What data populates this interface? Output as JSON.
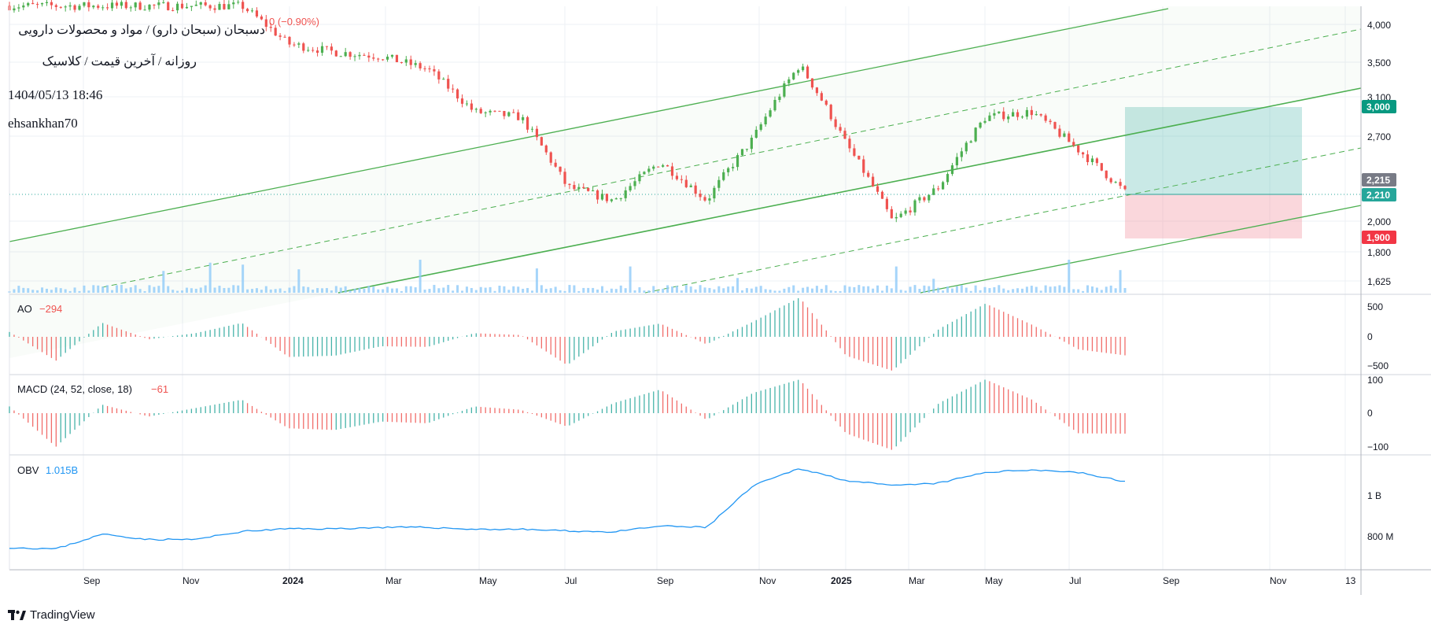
{
  "header": {
    "title": "دسبحان (سبحان دارو) / مواد و محصولات دارویی",
    "subtitle": "روزانه / آخرین قیمت / کلاسیک",
    "datetime": "1404/05/13 18:46",
    "author": "ehsankhan70",
    "change_text": "0 (−0.90%)"
  },
  "branding": {
    "logo_text": "TradingView"
  },
  "colors": {
    "up": "#26a69a",
    "up_candle": "#4caf50",
    "down": "#ef5350",
    "channel": "#4caf50",
    "volume": "#90caf9",
    "obv": "#2196f3",
    "target_zone": "#26a69a",
    "stop_zone": "#f28b9a",
    "grid": "#eef0f4"
  },
  "time_axis": {
    "labels": [
      "Sep",
      "Nov",
      "2024",
      "Mar",
      "May",
      "Jul",
      "Sep",
      "Nov",
      "2025",
      "Mar",
      "May",
      "Jul",
      "Sep",
      "Nov",
      "13"
    ],
    "bold": [
      "2024",
      "2025"
    ]
  },
  "price_axis": {
    "labels": [
      "4,000",
      "3,500",
      "3,100",
      "2,700",
      "2,000",
      "1,800",
      "1,625"
    ],
    "scale": "log",
    "badges": {
      "target": "3,000",
      "current_gray": "2,215",
      "current": "2,210",
      "stop": "1,900"
    }
  },
  "ao_pane": {
    "label": "AO",
    "value": "−294",
    "axis_labels": [
      "500",
      "0",
      "−500"
    ]
  },
  "macd_pane": {
    "label": "MACD (24, 52, close, 18)",
    "value": "−61",
    "axis_labels": [
      "100",
      "0",
      "−100"
    ]
  },
  "obv_pane": {
    "label": "OBV",
    "value": "1.015B",
    "axis_labels": [
      "1 B",
      "800 M"
    ]
  },
  "chart_data": [
    {
      "type": "line",
      "name_text": "price",
      "x": [
        "2023-08",
        "2023-09",
        "2023-10",
        "2023-11",
        "2023-12",
        "2024-01",
        "2024-02",
        "2024-03",
        "2024-04",
        "2024-05",
        "2024-06",
        "2024-07",
        "2024-08",
        "2024-09",
        "2024-10",
        "2024-11",
        "2024-12",
        "2025-01",
        "2025-02",
        "2025-03",
        "2025-04",
        "2025-05",
        "2025-06",
        "2025-07",
        "2025-08"
      ],
      "values": [
        4150,
        4150,
        4150,
        4150,
        4150,
        4150,
        3650,
        3550,
        3500,
        3350,
        2900,
        2850,
        2250,
        2150,
        2450,
        2150,
        2650,
        3400,
        2600,
        2000,
        2250,
        2850,
        2900,
        2550,
        2210
      ],
      "ylim": [
        1625,
        4100
      ],
      "scale": "log",
      "annotations": {
        "channel": "ascending parallel channel with dashed mid-lines",
        "position": {
          "entry": 2210,
          "target": 3000,
          "stop": 1900
        }
      }
    },
    {
      "type": "bar",
      "name_text": "AO",
      "x": [
        "2023-08",
        "2023-09",
        "2023-10",
        "2023-11",
        "2023-12",
        "2024-01",
        "2024-02",
        "2024-03",
        "2024-04",
        "2024-05",
        "2024-06",
        "2024-07",
        "2024-08",
        "2024-09",
        "2024-10",
        "2024-11",
        "2024-12",
        "2025-01",
        "2025-02",
        "2025-03",
        "2025-04",
        "2025-05",
        "2025-06",
        "2025-07",
        "2025-08"
      ],
      "values": [
        80,
        -380,
        230,
        -40,
        60,
        230,
        -320,
        -300,
        -150,
        -160,
        60,
        30,
        -450,
        90,
        220,
        -120,
        250,
        650,
        -300,
        -540,
        130,
        550,
        200,
        -200,
        -294
      ],
      "ylim": [
        -550,
        650
      ]
    },
    {
      "type": "bar",
      "name_text": "MACD",
      "x": [
        "2023-08",
        "2023-09",
        "2023-10",
        "2023-11",
        "2023-12",
        "2024-01",
        "2024-02",
        "2024-03",
        "2024-04",
        "2024-05",
        "2024-06",
        "2024-07",
        "2024-08",
        "2024-09",
        "2024-10",
        "2024-11",
        "2024-12",
        "2025-01",
        "2025-02",
        "2025-03",
        "2025-04",
        "2025-05",
        "2025-06",
        "2025-07",
        "2025-08"
      ],
      "values": [
        20,
        -100,
        25,
        -10,
        15,
        40,
        -45,
        -50,
        -25,
        -30,
        20,
        10,
        -40,
        30,
        70,
        -20,
        60,
        100,
        -60,
        -110,
        30,
        100,
        40,
        -60,
        -61
      ],
      "ylim": [
        -110,
        105
      ]
    },
    {
      "type": "line",
      "name_text": "OBV",
      "x": [
        "2023-08",
        "2023-09",
        "2023-10",
        "2023-11",
        "2023-12",
        "2024-01",
        "2024-02",
        "2024-03",
        "2024-04",
        "2024-05",
        "2024-06",
        "2024-07",
        "2024-08",
        "2024-09",
        "2024-10",
        "2024-11",
        "2024-12",
        "2025-01",
        "2025-02",
        "2025-03",
        "2025-04",
        "2025-05",
        "2025-06",
        "2025-07",
        "2025-08"
      ],
      "values_m": [
        770,
        765,
        820,
        800,
        800,
        830,
        840,
        840,
        845,
        845,
        838,
        838,
        832,
        828,
        850,
        845,
        1000,
        1065,
        1020,
        1000,
        1010,
        1050,
        1060,
        1050,
        1015
      ],
      "ylim_m": [
        740,
        1080
      ]
    }
  ]
}
